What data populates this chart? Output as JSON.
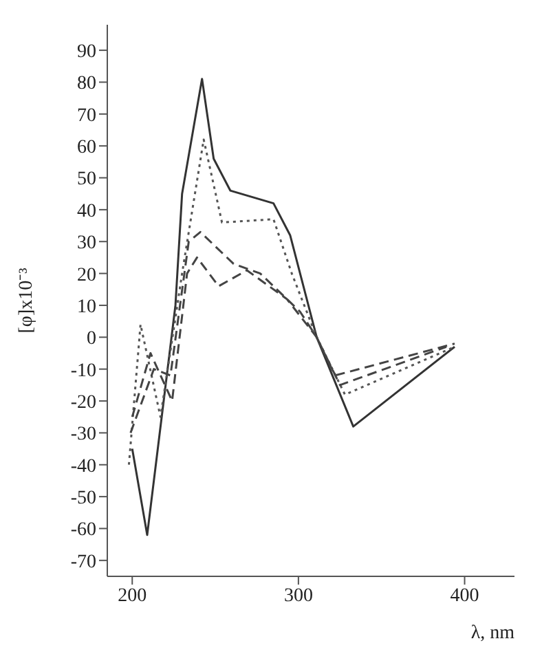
{
  "chart_data": {
    "type": "line",
    "ylabel": "[φ]x10⁻³",
    "xlabel": "λ, nm",
    "xlim": [
      185,
      430
    ],
    "xticks": [
      200,
      300,
      400
    ],
    "ylim": [
      -75,
      98
    ],
    "yticks": [
      -70,
      -60,
      -50,
      -40,
      -30,
      -20,
      -10,
      0,
      10,
      20,
      30,
      40,
      50,
      60,
      70,
      80,
      90
    ],
    "marker": "none",
    "series": [
      {
        "color": "#333333",
        "line_style": "solid",
        "x": [
          200,
          209,
          226,
          230,
          242,
          249,
          259,
          285,
          295,
          311,
          333,
          394
        ],
        "values": [
          -35,
          -62,
          10,
          45,
          81,
          56,
          46,
          42,
          32,
          0,
          -28,
          -3
        ]
      },
      {
        "color": "#555555",
        "line_style": "dotted",
        "x": [
          198,
          205,
          217,
          230,
          243,
          254,
          285,
          296,
          311,
          328,
          394
        ],
        "values": [
          -40,
          4,
          -25,
          20,
          62,
          36,
          37,
          20,
          0,
          -18,
          -3
        ]
      },
      {
        "color": "#444444",
        "line_style": "dashed",
        "x": [
          199,
          213,
          223,
          234,
          241,
          261,
          277,
          301,
          311,
          322,
          394
        ],
        "values": [
          -30,
          -10,
          -12,
          30,
          33,
          23,
          20,
          8,
          0,
          -12,
          -2
        ]
      },
      {
        "color": "#444444",
        "line_style": "dashed",
        "x": [
          200,
          211,
          224,
          233,
          239,
          252,
          269,
          293,
          311,
          325,
          389
        ],
        "values": [
          -25,
          -5,
          -20,
          20,
          25,
          16,
          21,
          12,
          0,
          -15,
          -3
        ]
      }
    ]
  }
}
